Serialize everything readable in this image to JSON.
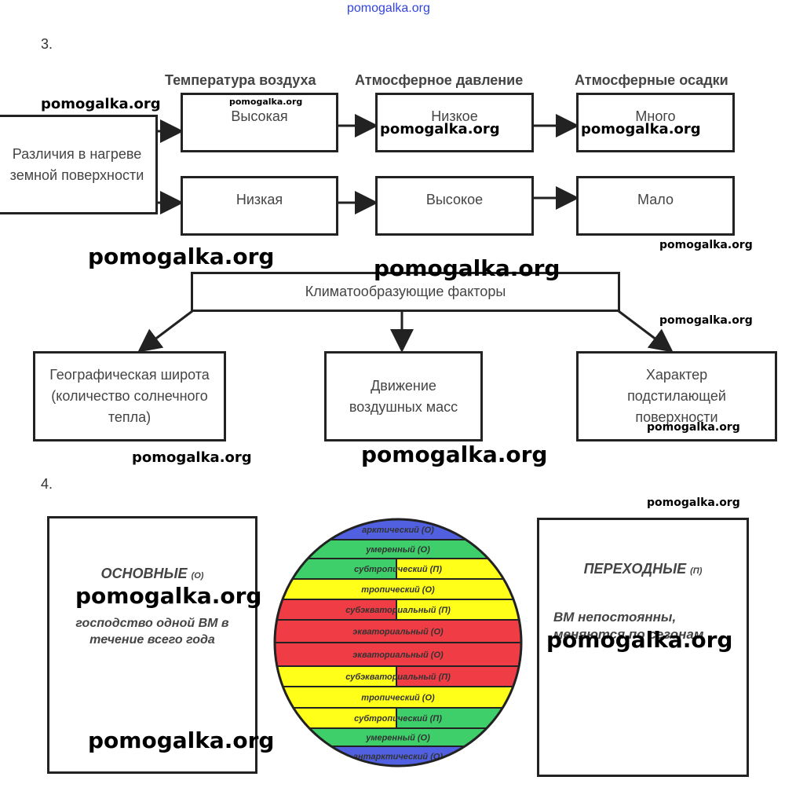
{
  "site_header": "pomogalka.org",
  "task3": {
    "number": "3.",
    "headers": [
      "Температура воздуха",
      "Атмосферное давление",
      "Атмосферные осадки"
    ],
    "source": "Различия в нагреве земной поверхности",
    "row1": [
      "Высокая",
      "Низкое",
      "Много"
    ],
    "row2": [
      "Низкая",
      "Высокое",
      "Мало"
    ],
    "root": "Климатообразующие факторы",
    "factors": [
      "Географическая широта (количество солнечного тепла)",
      "Движение воздушных масс",
      "Характер подстилающей поверхности"
    ]
  },
  "task4": {
    "number": "4.",
    "left_title": "ОСНОВНЫЕ",
    "left_mark": "(О)",
    "left_text": "господство одной ВМ в течение всего года",
    "right_title": "ПЕРЕХОДНЫЕ",
    "right_mark": "(П)",
    "right_text": "ВМ непостоянны, меняются по сезонам",
    "bands": [
      {
        "label": "арктический",
        "mark": "(О)",
        "left": "#5060e0",
        "right": "#5060e0"
      },
      {
        "label": "умеренный",
        "mark": "(О)",
        "left": "#3ecf6a",
        "right": "#3ecf6a"
      },
      {
        "label": "субтропический",
        "mark": "(П)",
        "left": "#3ecf6a",
        "right": "#ffff1a"
      },
      {
        "label": "тропический",
        "mark": "(О)",
        "left": "#ffff1a",
        "right": "#ffff1a"
      },
      {
        "label": "субэкваториальный",
        "mark": "(П)",
        "left": "#f03c44",
        "right": "#ffff1a"
      },
      {
        "label": "экваториальный",
        "mark": "(О)",
        "left": "#f03c44",
        "right": "#f03c44"
      },
      {
        "label": "экваториальный",
        "mark": "(О)",
        "left": "#f03c44",
        "right": "#f03c44"
      },
      {
        "label": "субэкваториальный",
        "mark": "(П)",
        "left": "#ffff1a",
        "right": "#f03c44"
      },
      {
        "label": "тропический",
        "mark": "(О)",
        "left": "#ffff1a",
        "right": "#ffff1a"
      },
      {
        "label": "субтропический",
        "mark": "(П)",
        "left": "#ffff1a",
        "right": "#3ecf6a"
      },
      {
        "label": "умеренный",
        "mark": "(О)",
        "left": "#3ecf6a",
        "right": "#3ecf6a"
      },
      {
        "label": "антарктический",
        "mark": "(О)",
        "left": "#5060e0",
        "right": "#5060e0"
      }
    ]
  },
  "watermarks": [
    "pomogalka.org",
    "pomogalka.org",
    "pomogalka.org",
    "pomogalka.org",
    "pomogalka.org",
    "pomogalka.org",
    "pomogalka.org",
    "pomogalka.org",
    "pomogalka.org",
    "pomogalka.org",
    "pomogalka.org",
    "pomogalka.org",
    "pomogalka.org",
    "pomogalka.org",
    "pomogalka.org",
    "pomogalka.org"
  ]
}
